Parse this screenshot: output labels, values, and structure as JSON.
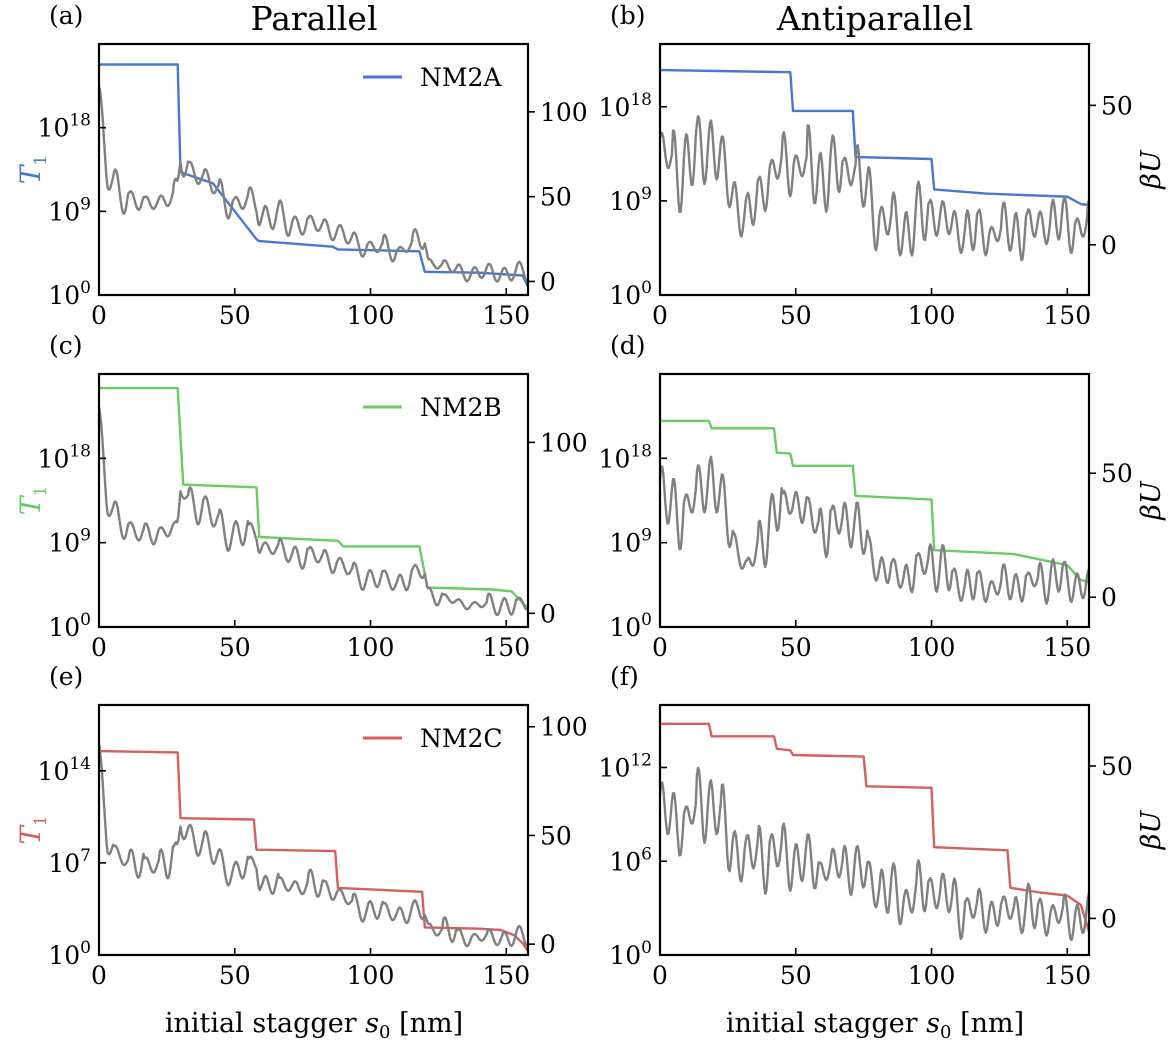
{
  "figure": {
    "col_titles": [
      "Parallel",
      "Antiparallel"
    ],
    "xlabel_main": "initial stagger",
    "xlabel_var": "s",
    "xlabel_sub": "0",
    "xlabel_unit": "[nm]",
    "left_ylabel": "T",
    "left_ylabel_sub": "1",
    "right_ylabel": "βU"
  },
  "colors": {
    "NM2A": "#4878cf",
    "NM2B": "#6acc65",
    "NM2C": "#d65f5f",
    "energy": "#808080"
  },
  "chart_data": [
    {
      "panel_label": "(a)",
      "type": "line",
      "column": "Parallel",
      "legend": "NM2A",
      "color_key": "NM2A",
      "xlim": [
        0,
        158
      ],
      "xticks": [
        "0",
        "50",
        "100",
        "150"
      ],
      "left_yscale": "log",
      "left_ylim_exp": [
        0,
        27
      ],
      "left_ytick_exps": [
        0,
        9,
        18
      ],
      "right_ylim": [
        -8,
        140
      ],
      "right_yticks": [
        0,
        50,
        100
      ],
      "series": [
        {
          "name": "NM2A",
          "axis": "left",
          "kind": "steps_log10",
          "x": [
            0,
            29,
            30,
            42,
            58,
            59,
            86,
            88,
            118,
            120,
            140,
            156,
            158
          ],
          "vals": [
            24.8,
            24.8,
            13.2,
            12.0,
            6.0,
            5.8,
            5.2,
            4.9,
            4.7,
            2.5,
            2.4,
            2.1,
            0.9
          ]
        },
        {
          "name": "energy",
          "axis": "right",
          "kind": "wavy",
          "kx": [
            0,
            3,
            15,
            29,
            30,
            50,
            58,
            59,
            70,
            85,
            95,
            110,
            120,
            121,
            135,
            158
          ],
          "ky": [
            108,
            60,
            45,
            50,
            72,
            45,
            48,
            40,
            35,
            32,
            22,
            18,
            25,
            12,
            5,
            5
          ],
          "amp": 0.5,
          "period": 5.5,
          "seed": 11
        }
      ]
    },
    {
      "panel_label": "(b)",
      "type": "line",
      "column": "Antiparallel",
      "legend": "",
      "color_key": "NM2A",
      "xlim": [
        0,
        158
      ],
      "xticks": [
        "0",
        "50",
        "100",
        "150"
      ],
      "left_yscale": "log",
      "left_ylim_exp": [
        0,
        24
      ],
      "left_ytick_exps": [
        0,
        9,
        18
      ],
      "right_ylim": [
        -18,
        72
      ],
      "right_yticks": [
        0,
        50
      ],
      "series": [
        {
          "name": "NM2A",
          "axis": "left",
          "kind": "steps_log10",
          "x": [
            0,
            48,
            49,
            71,
            72,
            100,
            101,
            120,
            150,
            155,
            158
          ],
          "vals": [
            21.5,
            21.3,
            17.6,
            17.6,
            13.2,
            13.0,
            10.1,
            9.7,
            9.4,
            8.7,
            8.6
          ]
        },
        {
          "name": "energy",
          "axis": "right",
          "kind": "wavy",
          "kx": [
            0,
            5,
            12,
            19,
            25,
            32,
            40,
            48,
            60,
            71,
            80,
            90,
            100,
            110,
            120,
            130,
            145,
            158
          ],
          "ky": [
            35,
            28,
            30,
            38,
            22,
            8,
            25,
            30,
            25,
            28,
            10,
            5,
            12,
            5,
            4,
            5,
            8,
            6
          ],
          "amp": 0.85,
          "period": 4.5,
          "seed": 23
        }
      ]
    },
    {
      "panel_label": "(c)",
      "type": "line",
      "column": "Parallel",
      "legend": "NM2B",
      "color_key": "NM2B",
      "xlim": [
        0,
        158
      ],
      "xticks": [
        "0",
        "50",
        "100",
        "150"
      ],
      "left_yscale": "log",
      "left_ylim_exp": [
        0,
        27
      ],
      "left_ytick_exps": [
        0,
        9,
        18
      ],
      "right_ylim": [
        -8,
        140
      ],
      "right_yticks": [
        0,
        100
      ],
      "series": [
        {
          "name": "NM2B",
          "axis": "left",
          "kind": "steps_log10",
          "x": [
            0,
            29,
            31,
            58,
            59,
            88,
            90,
            118,
            121,
            145,
            152,
            158
          ],
          "vals": [
            25.5,
            25.5,
            15.2,
            14.9,
            9.6,
            9.2,
            8.6,
            8.6,
            4.2,
            4.0,
            3.8,
            2.0
          ]
        },
        {
          "name": "energy",
          "axis": "right",
          "kind": "wavy",
          "kx": [
            0,
            3,
            15,
            29,
            30,
            50,
            58,
            59,
            70,
            85,
            95,
            110,
            120,
            121,
            135,
            158
          ],
          "ky": [
            115,
            62,
            45,
            50,
            72,
            45,
            48,
            40,
            35,
            32,
            22,
            18,
            25,
            12,
            5,
            5
          ],
          "amp": 0.5,
          "period": 5.5,
          "seed": 31
        }
      ]
    },
    {
      "panel_label": "(d)",
      "type": "line",
      "column": "Antiparallel",
      "legend": "",
      "color_key": "NM2B",
      "xlim": [
        0,
        158
      ],
      "xticks": [
        "0",
        "50",
        "100",
        "150"
      ],
      "left_yscale": "log",
      "left_ylim_exp": [
        0,
        27
      ],
      "left_ytick_exps": [
        0,
        9,
        18
      ],
      "right_ylim": [
        -12,
        90
      ],
      "right_yticks": [
        0,
        50
      ],
      "series": [
        {
          "name": "NM2B",
          "axis": "left",
          "kind": "steps_log10",
          "x": [
            0,
            18,
            19,
            42,
            43,
            48,
            49,
            71,
            72,
            100,
            101,
            130,
            150,
            155,
            158
          ],
          "vals": [
            22.0,
            22.0,
            21.2,
            21.2,
            18.6,
            18.5,
            17.2,
            17.2,
            14.0,
            13.6,
            8.2,
            7.8,
            6.6,
            5.0,
            4.8
          ]
        },
        {
          "name": "energy",
          "axis": "right",
          "kind": "wavy",
          "kx": [
            0,
            5,
            12,
            19,
            25,
            32,
            40,
            48,
            60,
            71,
            80,
            90,
            100,
            110,
            120,
            130,
            145,
            158
          ],
          "ky": [
            40,
            35,
            38,
            50,
            30,
            10,
            30,
            40,
            28,
            32,
            12,
            8,
            15,
            5,
            4,
            5,
            8,
            4
          ],
          "amp": 0.75,
          "period": 4.5,
          "seed": 41
        }
      ]
    },
    {
      "panel_label": "(e)",
      "type": "line",
      "column": "Parallel",
      "legend": "NM2C",
      "color_key": "NM2C",
      "xlim": [
        0,
        158
      ],
      "xticks": [
        "0",
        "50",
        "100",
        "150"
      ],
      "left_yscale": "log",
      "left_ylim_exp": [
        0,
        19
      ],
      "left_ytick_exps": [
        0,
        7,
        14
      ],
      "right_ylim": [
        -5,
        110
      ],
      "right_yticks": [
        0,
        50,
        100
      ],
      "series": [
        {
          "name": "NM2C",
          "axis": "left",
          "kind": "steps_log10",
          "x": [
            0,
            29,
            30,
            57,
            58,
            87,
            88,
            119,
            120,
            140,
            148,
            153,
            156,
            158
          ],
          "vals": [
            15.5,
            15.4,
            10.4,
            10.3,
            8.0,
            7.9,
            5.1,
            4.8,
            2.1,
            2.0,
            1.9,
            1.5,
            0.9,
            0.3
          ]
        },
        {
          "name": "energy",
          "axis": "right",
          "kind": "wavy",
          "kx": [
            0,
            3,
            15,
            29,
            30,
            50,
            58,
            59,
            70,
            85,
            95,
            110,
            120,
            121,
            135,
            158
          ],
          "ky": [
            88,
            45,
            35,
            40,
            55,
            32,
            38,
            28,
            27,
            26,
            17,
            14,
            15,
            8,
            3,
            3
          ],
          "amp": 0.5,
          "period": 5.5,
          "seed": 53
        }
      ]
    },
    {
      "panel_label": "(f)",
      "type": "line",
      "column": "Antiparallel",
      "legend": "",
      "color_key": "NM2C",
      "xlim": [
        0,
        158
      ],
      "xticks": [
        "0",
        "50",
        "100",
        "150"
      ],
      "left_yscale": "log",
      "left_ylim_exp": [
        0,
        16
      ],
      "left_ytick_exps": [
        0,
        6,
        12
      ],
      "right_ylim": [
        -12,
        70
      ],
      "right_yticks": [
        0,
        50
      ],
      "series": [
        {
          "name": "NM2C",
          "axis": "left",
          "kind": "steps_log10",
          "x": [
            0,
            18,
            19,
            42,
            43,
            48,
            49,
            75,
            76,
            100,
            101,
            128,
            129,
            140,
            150,
            155,
            158
          ],
          "vals": [
            14.8,
            14.8,
            14.0,
            14.0,
            13.2,
            13.1,
            12.8,
            12.7,
            10.8,
            10.7,
            6.9,
            6.7,
            4.3,
            4.0,
            3.8,
            3.2,
            1.5
          ]
        },
        {
          "name": "energy",
          "axis": "right",
          "kind": "wavy",
          "kx": [
            0,
            5,
            12,
            19,
            25,
            32,
            40,
            48,
            60,
            71,
            80,
            90,
            100,
            110,
            120,
            130,
            145,
            158
          ],
          "ky": [
            35,
            32,
            34,
            40,
            25,
            20,
            22,
            20,
            16,
            18,
            10,
            6,
            10,
            4,
            2,
            3,
            1,
            0
          ],
          "amp": 0.7,
          "period": 4.5,
          "seed": 61
        }
      ]
    }
  ]
}
